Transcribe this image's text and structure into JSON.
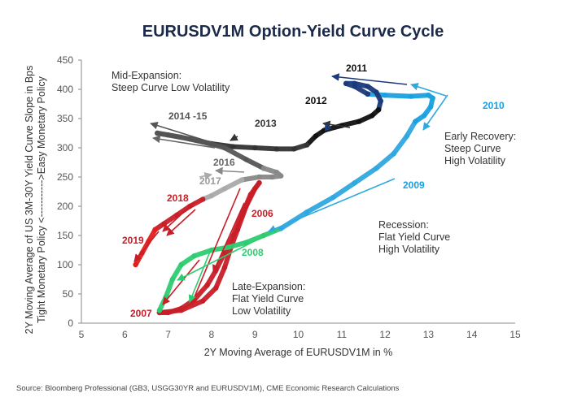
{
  "chart_data": {
    "type": "line",
    "title": "EURUSDV1M Option-Yield Curve Cycle",
    "xlabel": "2Y Moving Average of EURUSDV1M in %",
    "ylabel_lines": [
      "2Y Moving Average of US 3M-30Y Yield Curve Slope in Bps",
      "Tight Monetary Policy <----------->Easy Monetary Policy"
    ],
    "xlim": [
      5,
      15
    ],
    "ylim": [
      0,
      450
    ],
    "xticks": [
      "5",
      "6",
      "7",
      "8",
      "9",
      "10",
      "11",
      "12",
      "13",
      "14",
      "15"
    ],
    "yticks": [
      "0",
      "50",
      "100",
      "150",
      "200",
      "250",
      "300",
      "350",
      "400",
      "450"
    ],
    "grid": false,
    "series": [
      {
        "name": "2006",
        "color": "#c81e28",
        "x": [
          6.8,
          7.3,
          7.8,
          8.1,
          8.3,
          8.45,
          8.6,
          8.8,
          9.0,
          9.1
        ],
        "y": [
          18,
          22,
          38,
          60,
          95,
          130,
          160,
          200,
          230,
          240
        ]
      },
      {
        "name": "2007",
        "color": "#c81e28",
        "x": [
          9.1,
          8.9,
          8.7,
          8.5,
          8.3,
          8.1,
          7.9,
          7.6,
          7.3,
          7.0,
          6.8
        ],
        "y": [
          240,
          220,
          185,
          150,
          120,
          90,
          65,
          40,
          25,
          18,
          18
        ]
      },
      {
        "name": "2008",
        "color": "#2ecc71",
        "x": [
          6.8,
          6.95,
          7.1,
          7.3,
          7.6,
          8.0,
          8.4,
          8.8,
          9.2,
          9.6
        ],
        "y": [
          22,
          45,
          75,
          100,
          115,
          125,
          130,
          138,
          150,
          162
        ]
      },
      {
        "name": "2009",
        "color": "#2fa8e0",
        "x": [
          9.6,
          10.2,
          10.8,
          11.3,
          11.8,
          12.2,
          12.5,
          12.7
        ],
        "y": [
          162,
          190,
          215,
          240,
          265,
          290,
          320,
          345
        ]
      },
      {
        "name": "2010",
        "color": "#1ba0e0",
        "x": [
          12.7,
          12.9,
          13.05,
          13.1,
          13.0,
          12.6,
          12.0,
          11.6
        ],
        "y": [
          345,
          355,
          370,
          385,
          390,
          388,
          390,
          392
        ]
      },
      {
        "name": "2011",
        "color": "#1a3a7a",
        "x": [
          11.6,
          11.3,
          11.1,
          11.3,
          11.6,
          11.8,
          11.9,
          11.85
        ],
        "y": [
          392,
          405,
          410,
          410,
          405,
          395,
          380,
          365
        ]
      },
      {
        "name": "2012",
        "color": "#111111",
        "x": [
          11.85,
          11.7,
          11.4,
          11.0,
          10.6,
          10.4,
          10.2
        ],
        "y": [
          365,
          355,
          345,
          338,
          330,
          320,
          305
        ]
      },
      {
        "name": "2013",
        "color": "#333333",
        "x": [
          10.2,
          9.9,
          9.5,
          9.0,
          8.5,
          8.0,
          7.5,
          7.0,
          6.75
        ],
        "y": [
          305,
          298,
          298,
          300,
          302,
          307,
          315,
          322,
          325
        ]
      },
      {
        "name": "2014-15",
        "color": "#555555",
        "x": [
          6.75,
          7.3,
          7.8,
          8.3,
          8.8,
          9.2
        ],
        "y": [
          325,
          318,
          310,
          300,
          280,
          265
        ]
      },
      {
        "name": "2016",
        "color": "#888888",
        "x": [
          9.2,
          9.5,
          9.6,
          9.4,
          9.1,
          8.7
        ],
        "y": [
          265,
          258,
          252,
          250,
          250,
          245
        ]
      },
      {
        "name": "2017",
        "color": "#aaaaaa",
        "x": [
          8.7,
          8.3,
          8.0,
          7.8
        ],
        "y": [
          245,
          230,
          218,
          212
        ]
      },
      {
        "name": "2018",
        "color": "#c81e28",
        "x": [
          7.8,
          7.5,
          7.2,
          6.9,
          6.7
        ],
        "y": [
          212,
          200,
          185,
          170,
          160
        ]
      },
      {
        "name": "2019",
        "color": "#e02020",
        "x": [
          6.7,
          6.55,
          6.4,
          6.25
        ],
        "y": [
          160,
          140,
          120,
          100
        ]
      }
    ],
    "year_labels": [
      {
        "text": "2011",
        "color": "#111111"
      },
      {
        "text": "2012",
        "color": "#111111"
      },
      {
        "text": "2010",
        "color": "#1ba0e0"
      },
      {
        "text": "2013",
        "color": "#333333"
      },
      {
        "text": "2014 -15",
        "color": "#555555"
      },
      {
        "text": "2016",
        "color": "#666666"
      },
      {
        "text": "2017",
        "color": "#999999"
      },
      {
        "text": "2018",
        "color": "#c81e28"
      },
      {
        "text": "2019",
        "color": "#c81e28"
      },
      {
        "text": "2006",
        "color": "#c81e28"
      },
      {
        "text": "2007",
        "color": "#c81e28"
      },
      {
        "text": "2008",
        "color": "#2ecc71"
      },
      {
        "text": "2009",
        "color": "#1ba0e0"
      }
    ],
    "annotations": [
      {
        "lines": [
          "Mid-Expansion:",
          "Steep Curve  Low Volatility"
        ]
      },
      {
        "lines": [
          "Early Recovery:",
          "Steep Curve",
          "High Volatility"
        ]
      },
      {
        "lines": [
          "Recession:",
          "Flat Yield Curve",
          "High Volatility"
        ]
      },
      {
        "lines": [
          "Late-Expansion:",
          "Flat Yield Curve",
          "Low Volatility"
        ]
      }
    ]
  },
  "source": "Source: Bloomberg Professional (GB3, USGG30YR and EURUSDV1M), CME Economic Research Calculations"
}
